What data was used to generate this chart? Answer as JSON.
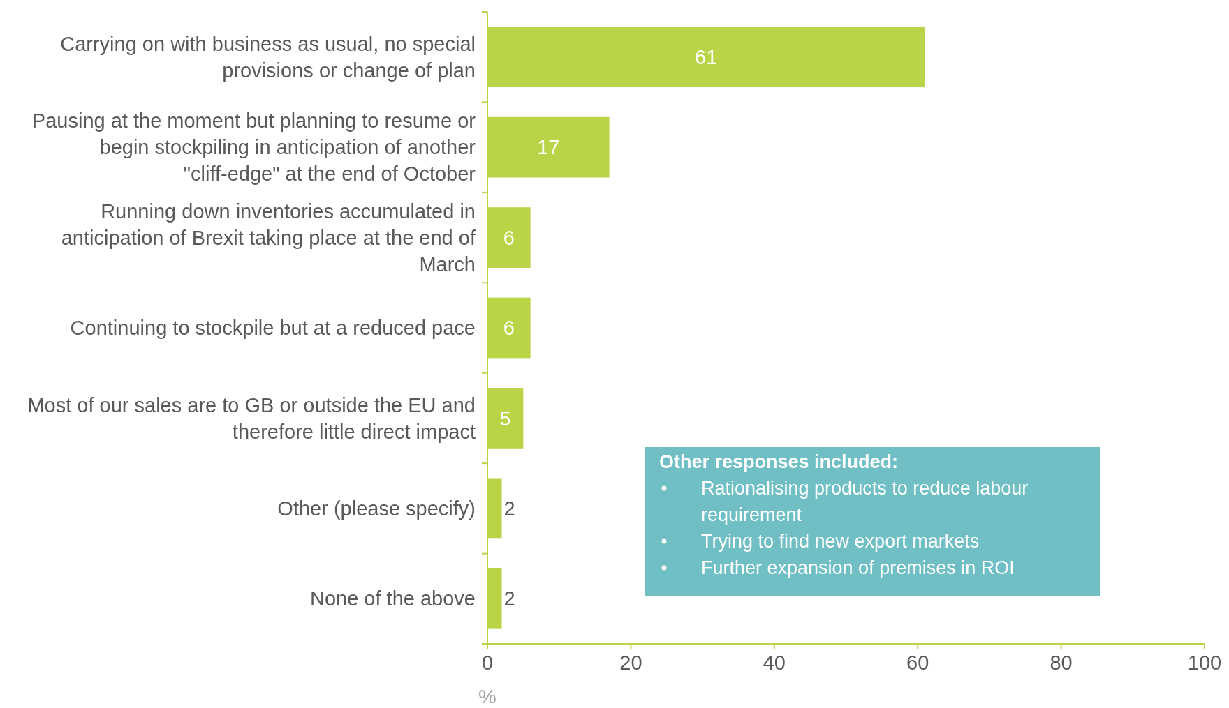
{
  "chart_data": {
    "type": "bar",
    "orientation": "horizontal",
    "xlabel": "%",
    "categories": [
      "Carrying on with business as usual, no special provisions or change of plan",
      "Pausing at the moment but planning to resume or begin stockpiling in anticipation of another \"cliff-edge\" at the end of October",
      "Running down inventories accumulated in anticipation of Brexit taking place at the end of March",
      "Continuing to stockpile but at a reduced pace",
      "Most of our sales are to GB or outside the EU and therefore little direct impact",
      "Other (please specify)",
      "None of the above"
    ],
    "values": [
      61,
      17,
      6,
      6,
      5,
      2,
      2
    ],
    "color": "#b9d547",
    "xlim": [
      0,
      100
    ],
    "xticks": [
      0,
      20,
      40,
      60,
      80,
      100
    ],
    "data_labels": true,
    "annotations": [
      "Other responses included:",
      "Rationalising products to reduce labour requirement",
      "Trying to find new export markets",
      "Further expansion of premises in ROI"
    ]
  }
}
